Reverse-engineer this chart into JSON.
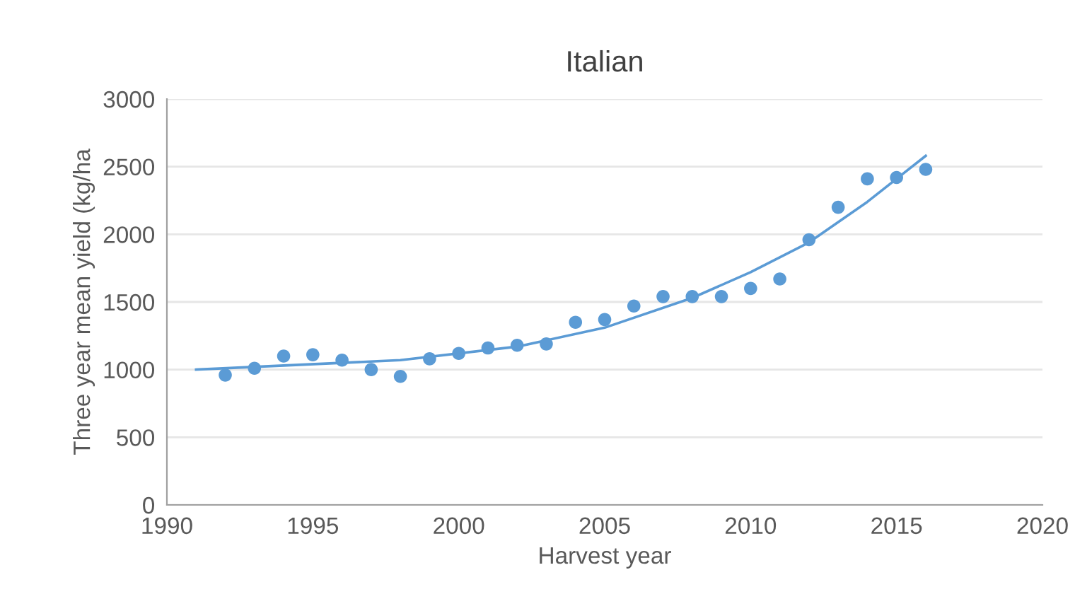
{
  "chart_data": {
    "type": "scatter",
    "title": "Italian",
    "xlabel": "Harvest year",
    "ylabel": "Three year mean yield (kg/ha",
    "xlim": [
      1990,
      2020
    ],
    "xticks": [
      1990,
      1995,
      2000,
      2005,
      2010,
      2015,
      2020
    ],
    "ylim": [
      0,
      3000
    ],
    "yticks": [
      0,
      500,
      1000,
      1500,
      2000,
      2500,
      3000
    ],
    "grid": "y",
    "series": [
      {
        "color": "#5b9bd5",
        "marker": "circle",
        "x": [
          1992,
          1993,
          1994,
          1995,
          1996,
          1997,
          1998,
          1999,
          2000,
          2001,
          2002,
          2003,
          2004,
          2005,
          2006,
          2007,
          2008,
          2009,
          2010,
          2011,
          2012,
          2013,
          2014,
          2015,
          2016
        ],
        "values": [
          960,
          1010,
          1100,
          1110,
          1070,
          1000,
          950,
          1080,
          1120,
          1160,
          1180,
          1190,
          1350,
          1370,
          1470,
          1540,
          1540,
          1540,
          1600,
          1670,
          1960,
          2200,
          2410,
          2420,
          2480
        ]
      },
      {
        "type": "line",
        "color": "#5b9bd5",
        "marker": "none",
        "x": [
          1991,
          1994,
          1998,
          2002,
          2005,
          2008,
          2010,
          2012,
          2014,
          2016
        ],
        "values": [
          1000,
          1030,
          1070,
          1170,
          1310,
          1530,
          1720,
          1940,
          2240,
          2580
        ]
      }
    ]
  }
}
